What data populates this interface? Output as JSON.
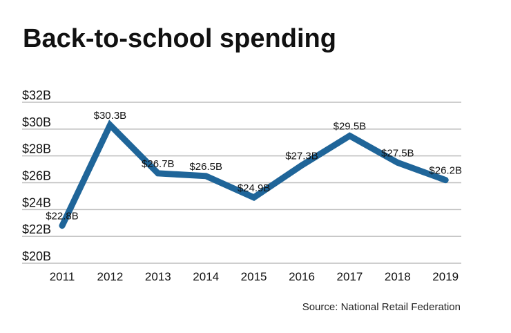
{
  "chart_data": {
    "type": "line",
    "title": "Back-to-school spending",
    "source": "Source: National Retail Federation",
    "categories": [
      "2011",
      "2012",
      "2013",
      "2014",
      "2015",
      "2016",
      "2017",
      "2018",
      "2019"
    ],
    "values": [
      22.8,
      30.3,
      26.7,
      26.5,
      24.9,
      27.3,
      29.5,
      27.5,
      26.2
    ],
    "data_labels": [
      "$22.8B",
      "$30.3B",
      "$26.7B",
      "$26.5B",
      "$24.9B",
      "$27.3B",
      "$29.5B",
      "$27.5B",
      "$26.2B"
    ],
    "yticks": [
      20,
      22,
      24,
      26,
      28,
      30,
      32
    ],
    "ytick_labels": [
      "$20B",
      "$22B",
      "$24B",
      "$26B",
      "$28B",
      "$30B",
      "$32B"
    ],
    "ylim": [
      20,
      32
    ],
    "xlabel": "",
    "ylabel": "",
    "grid": true,
    "colors": {
      "line": "#1f6599",
      "grid": "#bdbdbd",
      "text": "#111111"
    }
  }
}
